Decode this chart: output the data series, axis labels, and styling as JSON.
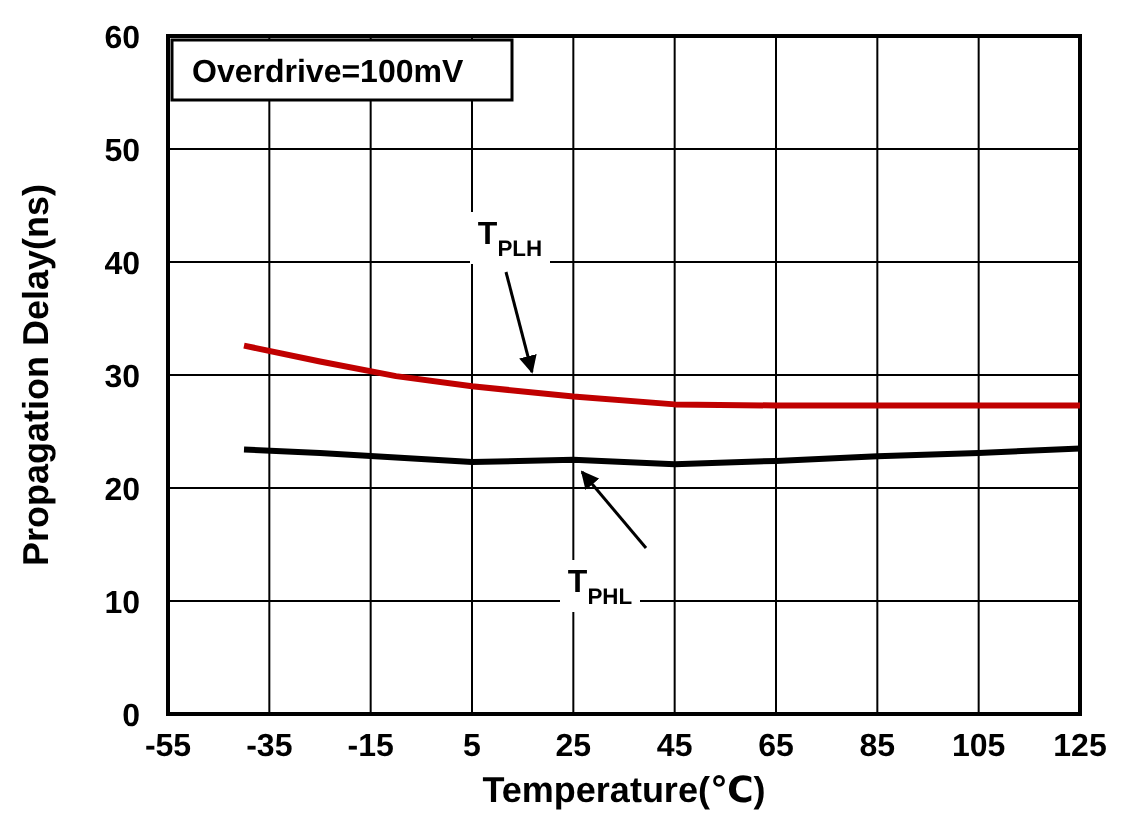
{
  "chart_data": {
    "type": "line",
    "xlabel": "Temperature(℃)",
    "ylabel": "Propagation Delay(ns)",
    "xlim": [
      -55,
      125
    ],
    "xticks": [
      -55,
      -35,
      -15,
      5,
      25,
      45,
      65,
      85,
      105,
      125
    ],
    "ylim": [
      0,
      60
    ],
    "yticks": [
      0,
      10,
      20,
      30,
      40,
      50,
      60
    ],
    "grid": true,
    "marker": "none",
    "line_style": "solid",
    "series": [
      {
        "name": "T$_{PLH}$",
        "color": "#c00000",
        "x": [
          -40,
          -25,
          -10,
          5,
          25,
          45,
          65,
          85,
          105,
          125
        ],
        "values": [
          32.6,
          31.2,
          29.9,
          29.0,
          28.1,
          27.4,
          27.3,
          27.3,
          27.3,
          27.3
        ]
      },
      {
        "name": "T$_{PHL}$",
        "color": "#000000",
        "x": [
          -40,
          -25,
          -10,
          5,
          25,
          45,
          65,
          85,
          105,
          125
        ],
        "values": [
          23.4,
          23.1,
          22.7,
          22.3,
          22.5,
          22.1,
          22.4,
          22.8,
          23.1,
          23.5
        ]
      }
    ],
    "annotations": [
      "Overdrive=100mV"
    ]
  }
}
